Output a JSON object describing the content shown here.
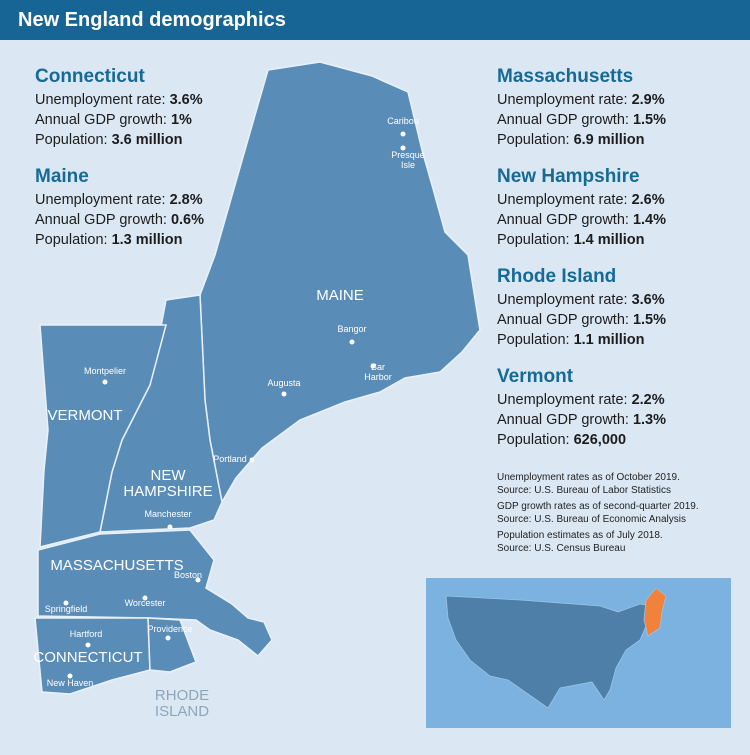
{
  "header": {
    "title": "New England demographics"
  },
  "states": [
    {
      "name": "Connecticut",
      "rows": [
        {
          "label": "Unemployment rate:",
          "value": "3.6%"
        },
        {
          "label": "Annual GDP growth:",
          "value": "1%"
        },
        {
          "label": "Population:",
          "value": "3.6 million"
        }
      ]
    },
    {
      "name": "Maine",
      "rows": [
        {
          "label": "Unemployment rate:",
          "value": "2.8%"
        },
        {
          "label": "Annual GDP growth:",
          "value": "0.6%"
        },
        {
          "label": "Population:",
          "value": "1.3 million"
        }
      ]
    },
    {
      "name": "Massachusetts",
      "rows": [
        {
          "label": "Unemployment rate:",
          "value": "2.9%"
        },
        {
          "label": "Annual GDP growth:",
          "value": "1.5%"
        },
        {
          "label": "Population:",
          "value": "6.9 million"
        }
      ]
    },
    {
      "name": "New Hampshire",
      "rows": [
        {
          "label": "Unemployment rate:",
          "value": "2.6%"
        },
        {
          "label": "Annual GDP growth:",
          "value": "1.4%"
        },
        {
          "label": "Population:",
          "value": "1.4 million"
        }
      ]
    },
    {
      "name": "Rhode Island",
      "rows": [
        {
          "label": "Unemployment rate:",
          "value": "3.6%"
        },
        {
          "label": "Annual GDP growth:",
          "value": "1.5%"
        },
        {
          "label": "Population:",
          "value": "1.1 million"
        }
      ]
    },
    {
      "name": "Vermont",
      "rows": [
        {
          "label": "Unemployment rate:",
          "value": "2.2%"
        },
        {
          "label": "Annual GDP growth:",
          "value": "1.3%"
        },
        {
          "label": "Population:",
          "value": "626,000"
        }
      ]
    }
  ],
  "notes": [
    [
      "Unemployment rates as of October 2019.",
      "Source: U.S. Bureau of Labor Statistics"
    ],
    [
      "GDP growth rates as of second-quarter 2019.",
      "Source: U.S. Bureau of Economic Analysis"
    ],
    [
      "Population estimates as of July 2018.",
      "Source: U.S. Census Bureau"
    ]
  ],
  "map": {
    "state_labels": [
      [
        "MAINE"
      ],
      [
        "VERMONT"
      ],
      [
        "NEW",
        "HAMPSHIRE"
      ],
      [
        "MASSACHUSETTS"
      ],
      [
        "CONNECTICUT"
      ],
      [
        "RHODE",
        "ISLAND"
      ]
    ],
    "cities": [
      [
        "Caribou"
      ],
      [
        "Presque",
        "Isle"
      ],
      [
        "Bangor"
      ],
      [
        "Bar",
        "Harbor"
      ],
      [
        "Augusta"
      ],
      [
        "Portland"
      ],
      [
        "Montpelier"
      ],
      [
        "Manchester"
      ],
      [
        "Boston"
      ],
      [
        "Springfield"
      ],
      [
        "Worcester"
      ],
      [
        "Hartford"
      ],
      [
        "Providence"
      ],
      [
        "New Haven"
      ]
    ]
  }
}
